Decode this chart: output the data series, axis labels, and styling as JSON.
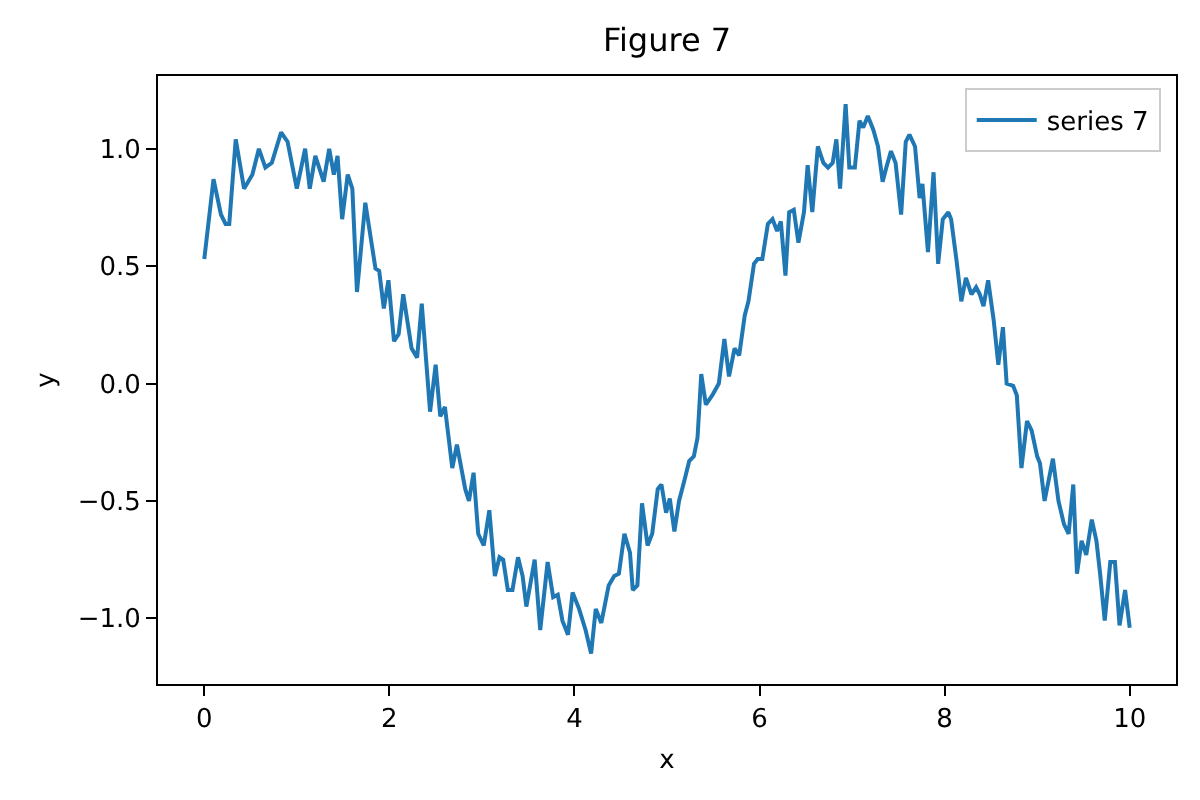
{
  "chart_data": {
    "type": "line",
    "title": "Figure 7",
    "xlabel": "x",
    "ylabel": "y",
    "x": [
      0,
      0.1,
      0.18,
      0.23,
      0.27,
      0.34,
      0.43,
      0.52,
      0.59,
      0.66,
      0.73,
      0.83,
      0.9,
      1.0,
      1.09,
      1.14,
      1.2,
      1.29,
      1.35,
      1.4,
      1.44,
      1.49,
      1.55,
      1.6,
      1.65,
      1.74,
      1.85,
      1.89,
      1.94,
      1.99,
      2.05,
      2.1,
      2.15,
      2.24,
      2.3,
      2.35,
      2.44,
      2.5,
      2.55,
      2.6,
      2.68,
      2.73,
      2.82,
      2.86,
      2.91,
      2.96,
      3.02,
      3.08,
      3.14,
      3.19,
      3.23,
      3.28,
      3.33,
      3.39,
      3.44,
      3.48,
      3.57,
      3.63,
      3.71,
      3.77,
      3.82,
      3.87,
      3.93,
      3.98,
      4.05,
      4.12,
      4.18,
      4.23,
      4.29,
      4.37,
      4.43,
      4.48,
      4.54,
      4.6,
      4.63,
      4.68,
      4.73,
      4.79,
      4.84,
      4.9,
      4.94,
      4.99,
      5.03,
      5.08,
      5.13,
      5.19,
      5.24,
      5.29,
      5.33,
      5.37,
      5.42,
      5.49,
      5.56,
      5.62,
      5.67,
      5.73,
      5.78,
      5.84,
      5.88,
      5.94,
      5.98,
      6.03,
      6.09,
      6.14,
      6.19,
      6.23,
      6.28,
      6.32,
      6.37,
      6.42,
      6.48,
      6.52,
      6.57,
      6.63,
      6.69,
      6.74,
      6.79,
      6.83,
      6.87,
      6.93,
      6.97,
      7.03,
      7.08,
      7.12,
      7.17,
      7.23,
      7.28,
      7.33,
      7.37,
      7.42,
      7.47,
      7.53,
      7.58,
      7.62,
      7.68,
      7.73,
      7.76,
      7.82,
      7.88,
      7.93,
      7.98,
      8.04,
      8.07,
      8.13,
      8.18,
      8.23,
      8.29,
      8.34,
      8.38,
      8.42,
      8.47,
      8.53,
      8.58,
      8.63,
      8.67,
      8.74,
      8.78,
      8.83,
      8.89,
      8.94,
      9.0,
      9.03,
      9.08,
      9.17,
      9.23,
      9.29,
      9.34,
      9.39,
      9.43,
      9.48,
      9.53,
      9.59,
      9.64,
      9.68,
      9.73,
      9.79,
      9.84,
      9.89,
      9.95,
      10.0
    ],
    "series": [
      {
        "name": "series 7",
        "color": "#1f77b4",
        "values": [
          0.53,
          0.87,
          0.72,
          0.68,
          0.68,
          1.04,
          0.83,
          0.89,
          1.0,
          0.92,
          0.94,
          1.07,
          1.03,
          0.83,
          1.0,
          0.83,
          0.97,
          0.86,
          1.0,
          0.89,
          0.97,
          0.7,
          0.89,
          0.83,
          0.39,
          0.77,
          0.49,
          0.48,
          0.32,
          0.44,
          0.18,
          0.21,
          0.38,
          0.15,
          0.11,
          0.34,
          -0.12,
          0.08,
          -0.14,
          -0.1,
          -0.36,
          -0.26,
          -0.45,
          -0.5,
          -0.38,
          -0.64,
          -0.69,
          -0.54,
          -0.82,
          -0.74,
          -0.75,
          -0.88,
          -0.88,
          -0.74,
          -0.82,
          -0.95,
          -0.75,
          -1.05,
          -0.76,
          -0.91,
          -0.9,
          -1.01,
          -1.07,
          -0.89,
          -0.96,
          -1.05,
          -1.15,
          -0.96,
          -1.02,
          -0.86,
          -0.82,
          -0.81,
          -0.64,
          -0.72,
          -0.88,
          -0.86,
          -0.51,
          -0.69,
          -0.64,
          -0.45,
          -0.43,
          -0.55,
          -0.49,
          -0.63,
          -0.5,
          -0.41,
          -0.33,
          -0.31,
          -0.23,
          0.04,
          -0.09,
          -0.05,
          0.0,
          0.19,
          0.03,
          0.15,
          0.12,
          0.29,
          0.35,
          0.51,
          0.53,
          0.53,
          0.68,
          0.7,
          0.65,
          0.69,
          0.46,
          0.73,
          0.74,
          0.6,
          0.73,
          0.93,
          0.73,
          1.01,
          0.94,
          0.92,
          0.94,
          1.04,
          0.83,
          1.19,
          0.92,
          0.92,
          1.12,
          1.09,
          1.14,
          1.08,
          1.01,
          0.86,
          0.92,
          0.99,
          0.94,
          0.72,
          1.03,
          1.06,
          1.01,
          0.79,
          0.85,
          0.56,
          0.9,
          0.51,
          0.7,
          0.73,
          0.7,
          0.52,
          0.35,
          0.45,
          0.38,
          0.41,
          0.38,
          0.33,
          0.44,
          0.27,
          0.08,
          0.24,
          0.0,
          -0.01,
          -0.05,
          -0.36,
          -0.16,
          -0.2,
          -0.31,
          -0.34,
          -0.5,
          -0.32,
          -0.5,
          -0.6,
          -0.64,
          -0.43,
          -0.81,
          -0.67,
          -0.73,
          -0.58,
          -0.67,
          -0.81,
          -1.01,
          -0.76,
          -0.76,
          -1.03,
          -0.88,
          -1.04
        ]
      }
    ],
    "xlim": [
      -0.5,
      10.5
    ],
    "ylim": [
      -1.28,
      1.31
    ],
    "xticks": [
      0,
      2,
      4,
      6,
      8,
      10
    ],
    "yticks": [
      {
        "value": -1.0,
        "label": "−1.0"
      },
      {
        "value": -0.5,
        "label": "−0.5"
      },
      {
        "value": 0.0,
        "label": "0.0"
      },
      {
        "value": 0.5,
        "label": "0.5"
      },
      {
        "value": 1.0,
        "label": "1.0"
      }
    ],
    "grid": false,
    "legend": "top right",
    "line_style": "solid"
  }
}
